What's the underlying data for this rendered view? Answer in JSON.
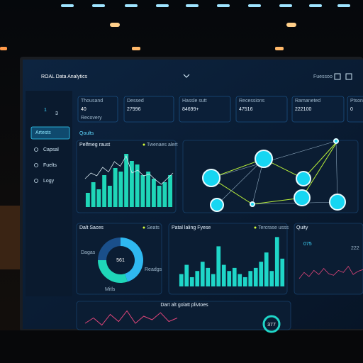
{
  "header": {
    "title": "ROAL Data Analytics",
    "menu": "Fuessoo"
  },
  "sidebar": {
    "number": "1",
    "number_sub": "3",
    "items": [
      "Artests",
      "Capsal",
      "Fuelts",
      "Logy"
    ]
  },
  "kpis": [
    {
      "label": "Thousand",
      "value": "40",
      "sub": "Recovery"
    },
    {
      "label": "Dessed",
      "value": "27996"
    },
    {
      "label": "Hassle sutt",
      "value": "84699+"
    },
    {
      "label": "Recessions",
      "value": "47516"
    },
    {
      "label": "Ramaneted",
      "value": "222100"
    },
    {
      "label": "Ptsons",
      "value": "0"
    }
  ],
  "section_title": "Qoults",
  "panels": {
    "trend": {
      "title": "Pelfmeg raust",
      "legend": "Twenaes alert",
      "bars": [
        20,
        35,
        25,
        45,
        30,
        55,
        50,
        75,
        65,
        60,
        45,
        50,
        40,
        30,
        35,
        45
      ],
      "line": [
        50,
        60,
        55,
        70,
        62,
        80,
        72,
        90,
        60,
        65,
        55,
        58,
        48,
        40,
        50,
        60
      ]
    },
    "sales": {
      "title": "Dalt Saces",
      "legend": "Seats",
      "center": "561",
      "left": "Dagas",
      "right": "Readgs",
      "bottom": "Mitls",
      "shares": [
        45,
        30,
        25
      ]
    },
    "fuse": {
      "title": "Patal laling Fyese",
      "legend": "Tercrase usss",
      "bars": [
        20,
        35,
        15,
        25,
        40,
        30,
        20,
        65,
        35,
        25,
        30,
        20,
        15,
        25,
        30,
        40,
        55,
        25,
        80,
        45
      ]
    },
    "quity": {
      "title": "Quity",
      "value": "075",
      "sub": "222",
      "line": [
        30,
        45,
        35,
        50,
        40,
        55,
        42,
        38,
        50,
        45,
        60,
        40,
        48,
        52
      ]
    },
    "bottom": {
      "title": "Dart alt golatt plivtoes",
      "ring": "377",
      "line": [
        20,
        35,
        15,
        45,
        25,
        55,
        20,
        40,
        30,
        50,
        25,
        35
      ]
    }
  }
}
